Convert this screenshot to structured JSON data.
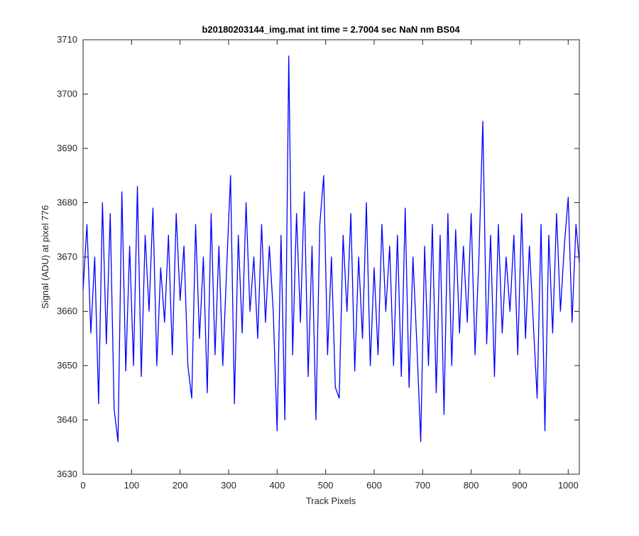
{
  "chart_data": {
    "type": "line",
    "title": "b20180203144_img.mat int time = 2.7004 sec  NaN nm BS04",
    "x_label": "Track Pixels",
    "y_label": "Signal (ADU) at pixel 776",
    "xlim": [
      0,
      1023
    ],
    "ylim": [
      3630,
      3710
    ],
    "xticks": [
      0,
      100,
      200,
      300,
      400,
      500,
      600,
      700,
      800,
      900,
      1000
    ],
    "yticks": [
      3630,
      3640,
      3650,
      3660,
      3670,
      3680,
      3690,
      3700,
      3710
    ],
    "grid": false,
    "x": [
      0,
      8,
      16,
      24,
      32,
      40,
      48,
      56,
      64,
      72,
      80,
      88,
      96,
      104,
      112,
      120,
      128,
      136,
      144,
      152,
      160,
      168,
      176,
      184,
      192,
      200,
      208,
      216,
      224,
      232,
      240,
      248,
      256,
      264,
      272,
      280,
      288,
      296,
      304,
      312,
      320,
      328,
      336,
      344,
      352,
      360,
      368,
      376,
      384,
      392,
      400,
      408,
      416,
      424,
      432,
      440,
      448,
      456,
      464,
      472,
      480,
      488,
      496,
      504,
      512,
      520,
      528,
      536,
      544,
      552,
      560,
      568,
      576,
      584,
      592,
      600,
      608,
      616,
      624,
      632,
      640,
      648,
      656,
      664,
      672,
      680,
      688,
      696,
      704,
      712,
      720,
      728,
      736,
      744,
      752,
      760,
      768,
      776,
      784,
      792,
      800,
      808,
      816,
      824,
      832,
      840,
      848,
      856,
      864,
      872,
      880,
      888,
      896,
      904,
      912,
      920,
      928,
      936,
      944,
      952,
      960,
      968,
      976,
      984,
      992,
      1000,
      1008,
      1016,
      1023
    ],
    "series": [
      {
        "name": "Signal",
        "color": "#0000ff",
        "values": [
          3664,
          3676,
          3656,
          3670,
          3643,
          3680,
          3654,
          3678,
          3642,
          3636,
          3682,
          3649,
          3672,
          3650,
          3683,
          3648,
          3674,
          3660,
          3679,
          3650,
          3668,
          3658,
          3674,
          3652,
          3678,
          3662,
          3672,
          3650,
          3644,
          3676,
          3655,
          3670,
          3645,
          3678,
          3652,
          3672,
          3650,
          3668,
          3685,
          3643,
          3674,
          3656,
          3680,
          3660,
          3670,
          3655,
          3676,
          3658,
          3672,
          3660,
          3638,
          3674,
          3640,
          3707,
          3652,
          3678,
          3658,
          3682,
          3648,
          3672,
          3640,
          3676,
          3685,
          3652,
          3670,
          3646,
          3644,
          3674,
          3660,
          3678,
          3649,
          3670,
          3655,
          3680,
          3650,
          3668,
          3652,
          3676,
          3660,
          3672,
          3650,
          3674,
          3648,
          3679,
          3646,
          3670,
          3654,
          3636,
          3672,
          3650,
          3676,
          3645,
          3674,
          3641,
          3678,
          3650,
          3675,
          3656,
          3672,
          3658,
          3678,
          3652,
          3670,
          3695,
          3654,
          3674,
          3648,
          3676,
          3656,
          3670,
          3660,
          3674,
          3652,
          3678,
          3655,
          3672,
          3658,
          3644,
          3676,
          3638,
          3674,
          3656,
          3678,
          3660,
          3672,
          3681,
          3658,
          3676,
          3669
        ]
      }
    ]
  }
}
